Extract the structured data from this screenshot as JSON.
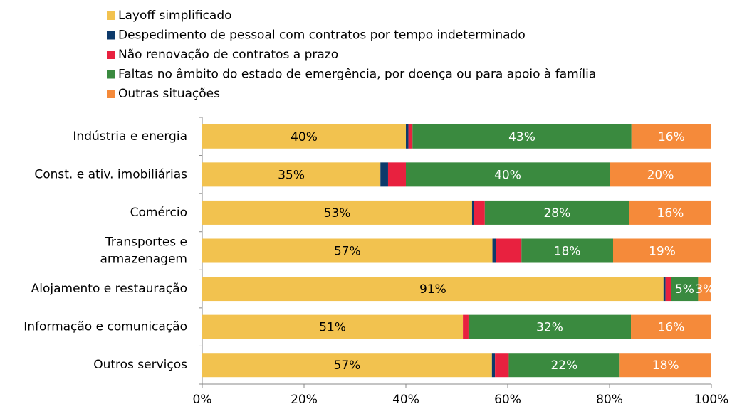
{
  "chart_data": {
    "type": "stacked-bar-horizontal",
    "categories": [
      "Indústria e energia",
      "Const. e ativ. imobiliárias",
      "Comércio",
      "Transportes e\narmazenagem",
      "Alojamento e restauração",
      "Informação e comunicação",
      "Outros serviços"
    ],
    "series": [
      {
        "name": "Layoff simplificado",
        "color": "#f2c24f",
        "label_color": "#000000",
        "values": [
          40,
          35,
          53,
          57,
          90.6,
          51.2,
          56.9
        ],
        "value_labels": [
          "40%",
          "35%",
          "53%",
          "57%",
          "91%",
          "51%",
          "57%"
        ]
      },
      {
        "name": "Despedimento de pessoal com contratos por tempo indeterminado",
        "color": "#0d3a6b",
        "values": [
          0.5,
          1.5,
          0.3,
          0.7,
          0.4,
          0,
          0.6
        ]
      },
      {
        "name": "Não renovação de contratos a prazo",
        "color": "#e8213f",
        "values": [
          0.8,
          3.5,
          2.2,
          5,
          1.1,
          1.1,
          2.7
        ]
      },
      {
        "name": "Faltas no âmbito do estado de emergência, por doença ou para apoio à família",
        "color": "#3a8a3f",
        "label_color": "#ffffff",
        "values": [
          43,
          40,
          28.4,
          18,
          5.3,
          31.9,
          21.8
        ],
        "value_labels": [
          "43%",
          "40%",
          "28%",
          "18%",
          "5%",
          "32%",
          "22%"
        ]
      },
      {
        "name": "Outras situações",
        "color": "#f58a3a",
        "label_color": "#ffffff",
        "values": [
          15.7,
          20,
          16.1,
          19.3,
          2.6,
          15.8,
          18
        ],
        "value_labels": [
          "16%",
          "20%",
          "16%",
          "19%",
          "3%",
          "16%",
          "18%"
        ]
      }
    ],
    "xlim": [
      0,
      100
    ],
    "xticks": [
      {
        "value": 0,
        "label": "0%"
      },
      {
        "value": 20,
        "label": "20%"
      },
      {
        "value": 40,
        "label": "40%"
      },
      {
        "value": 60,
        "label": "60%"
      },
      {
        "value": 80,
        "label": "80%"
      },
      {
        "value": 100,
        "label": "100%"
      }
    ],
    "legend": "top-left"
  }
}
